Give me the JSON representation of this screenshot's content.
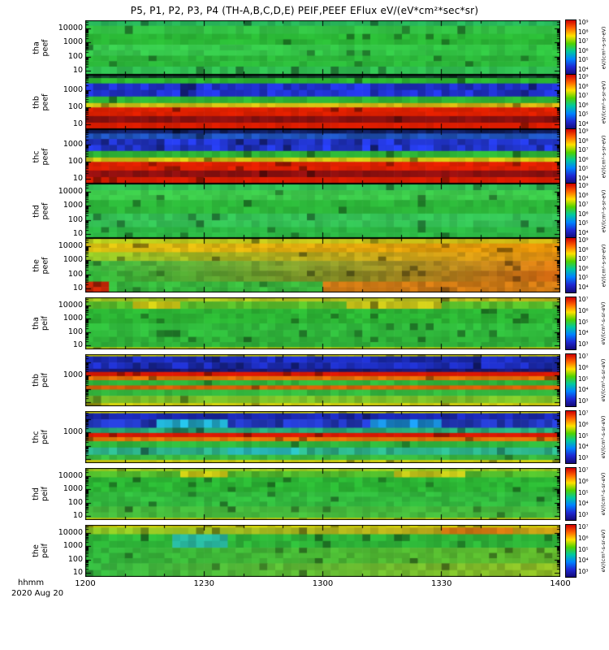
{
  "chart_data": {
    "type": "heatmap",
    "title": "P5, P1, P2, P3, P4 (TH-A,B,C,D,E)  PEIF,PEEF EFlux eV/(eV*cm²*sec*sr)",
    "xlabel": "hhmm",
    "date": "2020 Aug 20",
    "x_range_hhmm": [
      1200,
      1400
    ],
    "x_major_ticks": [
      "1200",
      "1230",
      "1300",
      "1330",
      "1400"
    ],
    "x_minor_tick_minutes": 10,
    "y_axis_quantity": "energy (eV), log scale",
    "colormap": "rainbow",
    "colorbar_stops": [
      "#d00000",
      "#ff6400",
      "#ffe100",
      "#50d200",
      "#00c8a0",
      "#0082ff",
      "#1e28d2",
      "#140a78"
    ],
    "colorbar_unit": "eV/(cm²-s-sr-eV)",
    "panels": [
      {
        "name": "tha peef",
        "group": "peef",
        "label_lines": [
          "tha",
          "peef"
        ],
        "y_ticks": [
          "10000",
          "1000",
          "100",
          "10"
        ],
        "colorbar_ticks": [
          "10⁹",
          "10⁸",
          "10⁷",
          "10⁶",
          "10⁵",
          "10⁴"
        ],
        "bands": [
          {
            "h": 0.1,
            "left": "#28b45a",
            "jitter": 0.18
          },
          {
            "h": 0.15,
            "left": "#33c044",
            "jitter": 0.16
          },
          {
            "h": 0.2,
            "left": "#2bb836",
            "jitter": 0.16
          },
          {
            "h": 0.2,
            "left": "#38c84e",
            "right": "#30c040",
            "jitter": 0.18
          },
          {
            "h": 0.2,
            "left": "#2cb83a",
            "jitter": 0.16
          },
          {
            "h": 0.15,
            "left": "#30bc50",
            "jitter": 0.18
          }
        ]
      },
      {
        "name": "thb peef",
        "group": "peef",
        "label_lines": [
          "thb",
          "peef"
        ],
        "y_ticks": [
          "1000",
          "100",
          "10"
        ],
        "log_top": 3.9,
        "colorbar_ticks": [
          "10⁹",
          "10⁸",
          "10⁷",
          "10⁶",
          "10⁵",
          "10⁴"
        ],
        "bands": [
          {
            "h": 0.06,
            "left": "#123c2a",
            "jitter": 0.5
          },
          {
            "h": 0.1,
            "left": "#2ab431",
            "jitter": 0.2
          },
          {
            "h": 0.24,
            "left": "#2032cc",
            "jitter": 0.45
          },
          {
            "h": 0.12,
            "left": "#2db436",
            "jitter": 0.2
          },
          {
            "h": 0.08,
            "left": "#ccc414",
            "right": "#d0ac10",
            "jitter": 0.25
          },
          {
            "h": 0.16,
            "left": "#dc2000",
            "jitter": 0.15
          },
          {
            "h": 0.12,
            "left": "#8e1010",
            "jitter": 0.25
          },
          {
            "h": 0.12,
            "left": "#d81c00",
            "jitter": 0.12
          }
        ]
      },
      {
        "name": "thc peef",
        "group": "peef",
        "label_lines": [
          "thc",
          "peef"
        ],
        "y_ticks": [
          "1000",
          "100",
          "10"
        ],
        "log_top": 3.9,
        "colorbar_ticks": [
          "10⁹",
          "10⁸",
          "10⁷",
          "10⁶",
          "10⁵",
          "10⁴"
        ],
        "bands": [
          {
            "h": 0.08,
            "left": "#101e60",
            "jitter": 0.5
          },
          {
            "h": 0.1,
            "left": "#1e50b4",
            "jitter": 0.35
          },
          {
            "h": 0.22,
            "left": "#2236d0",
            "jitter": 0.45
          },
          {
            "h": 0.12,
            "left": "#2db437",
            "jitter": 0.2
          },
          {
            "h": 0.08,
            "left": "#c8c214",
            "jitter": 0.25
          },
          {
            "h": 0.16,
            "left": "#de2000",
            "jitter": 0.15
          },
          {
            "h": 0.12,
            "left": "#901010",
            "jitter": 0.25
          },
          {
            "h": 0.12,
            "left": "#d61c00",
            "jitter": 0.12
          }
        ]
      },
      {
        "name": "thd peef",
        "group": "peef",
        "label_lines": [
          "thd",
          "peef"
        ],
        "y_ticks": [
          "10000",
          "1000",
          "100",
          "10"
        ],
        "colorbar_ticks": [
          "10⁹",
          "10⁸",
          "10⁷",
          "10⁶",
          "10⁵",
          "10⁴"
        ],
        "bands": [
          {
            "h": 0.12,
            "left": "#2fbf55",
            "jitter": 0.18
          },
          {
            "h": 0.18,
            "left": "#3cc84a",
            "jitter": 0.16
          },
          {
            "h": 0.25,
            "left": "#2db63a",
            "jitter": 0.16
          },
          {
            "h": 0.25,
            "left": "#34c055",
            "jitter": 0.18
          },
          {
            "h": 0.2,
            "left": "#2cb844",
            "jitter": 0.16
          }
        ]
      },
      {
        "name": "the peef",
        "group": "peef",
        "label_lines": [
          "the",
          "peef"
        ],
        "y_ticks": [
          "10000",
          "1000",
          "100",
          "10"
        ],
        "colorbar_ticks": [
          "10⁹",
          "10⁸",
          "10⁷",
          "10⁶",
          "10⁵",
          "10⁴"
        ],
        "bands": [
          {
            "h": 0.1,
            "left": "#b4cc1e",
            "right": "#ccb414",
            "jitter": 0.2
          },
          {
            "h": 0.16,
            "left": "#d8c012",
            "right": "#e08e08",
            "jitter": 0.2
          },
          {
            "h": 0.16,
            "left": "#90c426",
            "right": "#e08c10",
            "jitter": 0.22
          },
          {
            "h": 0.18,
            "left": "#3ab83e",
            "right": "#d87812",
            "jitter": 0.22
          },
          {
            "h": 0.2,
            "left": "#30b43a",
            "right": "#cc6410",
            "jitter": 0.22
          },
          {
            "h": 0.2,
            "left": "#34b43c",
            "right": "#42b83c",
            "jitter": 0.25,
            "patches": [
              {
                "t0": 0.0,
                "t1": 0.05,
                "color": "#c82806"
              },
              {
                "t0": 0.5,
                "t1": 1.0,
                "color": "#cc7814"
              }
            ]
          }
        ]
      },
      {
        "name": "tha peif",
        "group": "peif",
        "label_lines": [
          "tha",
          "peif"
        ],
        "y_ticks": [
          "10000",
          "1000",
          "100",
          "10"
        ],
        "colorbar_ticks": [
          "10⁷",
          "10⁶",
          "10⁵",
          "10⁴",
          "10³"
        ],
        "bands": [
          {
            "h": 0.08,
            "left": "#a0c822",
            "right": "#c0b41c",
            "jitter": 0.22
          },
          {
            "h": 0.14,
            "left": "#58bc2a",
            "jitter": 0.25,
            "patches": [
              {
                "t0": 0.1,
                "t1": 0.2,
                "color": "#c8c414"
              },
              {
                "t0": 0.55,
                "t1": 0.75,
                "color": "#c4c018"
              }
            ]
          },
          {
            "h": 0.28,
            "left": "#2cb434",
            "jitter": 0.2
          },
          {
            "h": 0.26,
            "left": "#30b83c",
            "jitter": 0.2
          },
          {
            "h": 0.2,
            "left": "#2eb038",
            "jitter": 0.2
          },
          {
            "h": 0.04,
            "left": "#c8c80c",
            "jitter": 0.15
          }
        ]
      },
      {
        "name": "thb peif",
        "group": "peif",
        "label_lines": [
          "thb",
          "peif"
        ],
        "y_ticks": [
          "1000"
        ],
        "colorbar_ticks": [
          "10⁷",
          "10⁶",
          "10⁵",
          "10⁴",
          "10³"
        ],
        "bands": [
          {
            "h": 0.04,
            "left": "#d8d800",
            "jitter": 0.12
          },
          {
            "h": 0.24,
            "left": "#1c2cb8",
            "jitter": 0.45
          },
          {
            "h": 0.06,
            "left": "#1c1a78",
            "jitter": 0.4
          },
          {
            "h": 0.08,
            "left": "#d81804",
            "jitter": 0.12
          },
          {
            "h": 0.08,
            "left": "#e07008",
            "jitter": 0.18
          },
          {
            "h": 0.1,
            "left": "#2fb43a",
            "jitter": 0.2
          },
          {
            "h": 0.08,
            "left": "#d86008",
            "jitter": 0.2
          },
          {
            "h": 0.12,
            "left": "#34b83e",
            "jitter": 0.2
          },
          {
            "h": 0.14,
            "left": "#7cc028",
            "jitter": 0.22
          },
          {
            "h": 0.06,
            "left": "#d0cc0a",
            "jitter": 0.15
          }
        ]
      },
      {
        "name": "thc peif",
        "group": "peif",
        "label_lines": [
          "thc",
          "peif"
        ],
        "y_ticks": [
          "1000"
        ],
        "colorbar_ticks": [
          "10⁷",
          "10⁶",
          "10⁵",
          "10⁴",
          "10³"
        ],
        "bands": [
          {
            "h": 0.04,
            "left": "#d8d800",
            "jitter": 0.12
          },
          {
            "h": 0.12,
            "left": "#1a28b0",
            "jitter": 0.4
          },
          {
            "h": 0.16,
            "left": "#2238c0",
            "jitter": 0.45,
            "patches": [
              {
                "t0": 0.15,
                "t1": 0.3,
                "color": "#20a8c8"
              },
              {
                "t0": 0.6,
                "t1": 0.75,
                "color": "#1888d0"
              }
            ]
          },
          {
            "h": 0.1,
            "left": "#28a878",
            "jitter": 0.3
          },
          {
            "h": 0.08,
            "left": "#d81a04",
            "jitter": 0.12
          },
          {
            "h": 0.08,
            "left": "#dc7408",
            "jitter": 0.18
          },
          {
            "h": 0.12,
            "left": "#30b43c",
            "jitter": 0.2
          },
          {
            "h": 0.14,
            "left": "#2cb088",
            "jitter": 0.3,
            "patches": [
              {
                "t0": 0.3,
                "t1": 0.45,
                "color": "#28b4b4"
              }
            ]
          },
          {
            "h": 0.1,
            "left": "#38b840",
            "jitter": 0.2
          },
          {
            "h": 0.06,
            "left": "#ccc80c",
            "jitter": 0.15
          }
        ]
      },
      {
        "name": "thd peif",
        "group": "peif",
        "label_lines": [
          "thd",
          "peif"
        ],
        "y_ticks": [
          "10000",
          "1000",
          "100",
          "10"
        ],
        "colorbar_ticks": [
          "10⁷",
          "10⁶",
          "10⁵",
          "10⁴",
          "10³"
        ],
        "bands": [
          {
            "h": 0.06,
            "left": "#9cc820",
            "jitter": 0.2
          },
          {
            "h": 0.12,
            "left": "#50b82c",
            "jitter": 0.25,
            "patches": [
              {
                "t0": 0.2,
                "t1": 0.3,
                "color": "#c4c414"
              },
              {
                "t0": 0.65,
                "t1": 0.8,
                "color": "#bcc018"
              }
            ]
          },
          {
            "h": 0.28,
            "left": "#2cb434",
            "jitter": 0.2
          },
          {
            "h": 0.28,
            "left": "#32b83e",
            "jitter": 0.2
          },
          {
            "h": 0.22,
            "left": "#44b83c",
            "jitter": 0.2
          },
          {
            "h": 0.04,
            "left": "#c8c80c",
            "jitter": 0.15
          }
        ]
      },
      {
        "name": "the peif",
        "group": "peif",
        "label_lines": [
          "the",
          "peif"
        ],
        "y_ticks": [
          "10000",
          "1000",
          "100",
          "10"
        ],
        "colorbar_ticks": [
          "10⁷",
          "10⁶",
          "10⁵",
          "10⁴",
          "10³"
        ],
        "bands": [
          {
            "h": 0.05,
            "left": "#d0d005",
            "jitter": 0.15
          },
          {
            "h": 0.13,
            "left": "#88c424",
            "right": "#c89c14",
            "jitter": 0.25,
            "patches": [
              {
                "t0": 0.75,
                "t1": 0.9,
                "color": "#d07810"
              }
            ]
          },
          {
            "h": 0.26,
            "left": "#2eb438",
            "jitter": 0.22,
            "patches": [
              {
                "t0": 0.18,
                "t1": 0.3,
                "color": "#28b49c"
              }
            ]
          },
          {
            "h": 0.3,
            "left": "#30b43c",
            "right": "#62b82c",
            "jitter": 0.2
          },
          {
            "h": 0.26,
            "left": "#34b440",
            "right": "#90bc24",
            "jitter": 0.22
          }
        ]
      }
    ]
  }
}
